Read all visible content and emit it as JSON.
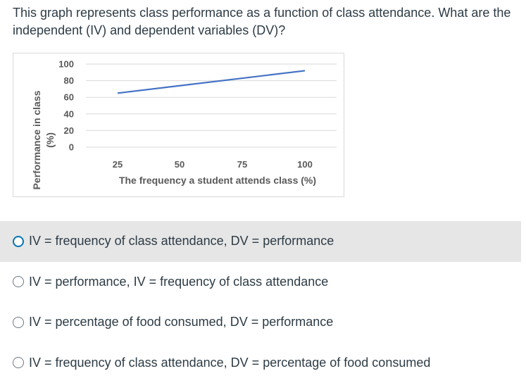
{
  "question": "This graph represents class performance as a function of class attendance.  What are the independent (IV) and dependent variables (DV)?",
  "chart_data": {
    "type": "line",
    "x": [
      25,
      100
    ],
    "series": [
      {
        "values": [
          65,
          92
        ]
      }
    ],
    "categories": [
      "25",
      "50",
      "75",
      "100"
    ],
    "y_ticks": [
      0,
      20,
      40,
      60,
      80,
      100
    ],
    "ylim": [
      0,
      100
    ],
    "xlabel": "The frequency a student attends  class (%)",
    "ylabel_line1": "Performance in class",
    "ylabel_line2": "(%)",
    "grid": true,
    "line_color": "#4472c4"
  },
  "options": [
    {
      "label": "IV = frequency of class attendance, DV = performance",
      "selected": true
    },
    {
      "label": "IV = performance, IV = frequency of class attendance",
      "selected": false
    },
    {
      "label": "IV = percentage of food consumed, DV = performance",
      "selected": false
    },
    {
      "label": "IV = frequency of class attendance, DV = percentage of food consumed",
      "selected": false
    }
  ]
}
